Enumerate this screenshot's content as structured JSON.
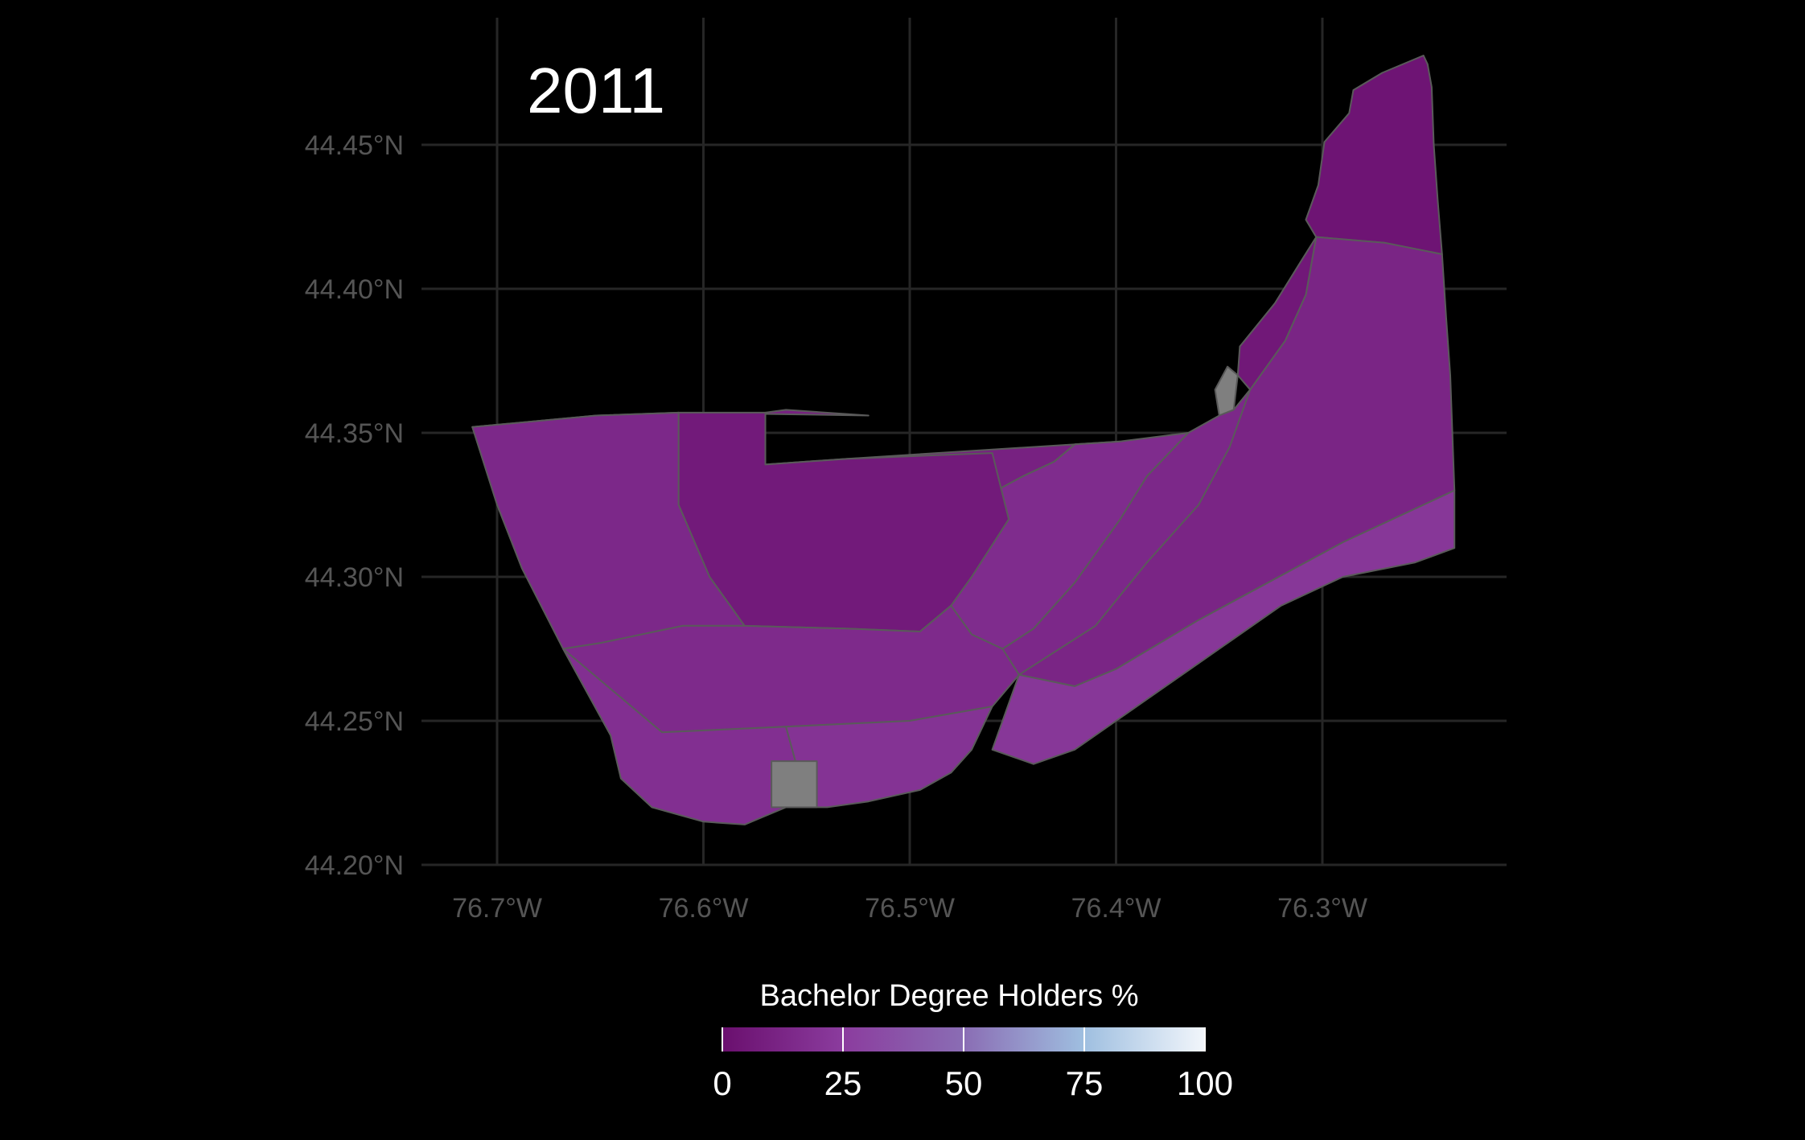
{
  "map": {
    "year": "2011",
    "x_axis": {
      "ticks": [
        {
          "value": -76.7,
          "label": "76.7°W"
        },
        {
          "value": -76.6,
          "label": "76.6°W"
        },
        {
          "value": -76.5,
          "label": "76.5°W"
        },
        {
          "value": -76.4,
          "label": "76.4°W"
        },
        {
          "value": -76.3,
          "label": "76.3°W"
        }
      ]
    },
    "y_axis": {
      "ticks": [
        {
          "value": 44.45,
          "label": "44.45°N"
        },
        {
          "value": 44.4,
          "label": "44.40°N"
        },
        {
          "value": 44.35,
          "label": "44.35°N"
        },
        {
          "value": 44.3,
          "label": "44.30°N"
        },
        {
          "value": 44.25,
          "label": "44.25°N"
        },
        {
          "value": 44.2,
          "label": "44.20°N"
        }
      ]
    },
    "legend": {
      "title": "Bachelor Degree Holders %",
      "range": [
        0,
        100
      ],
      "breaks": [
        {
          "value": 0,
          "label": "0"
        },
        {
          "value": 25,
          "label": "25"
        },
        {
          "value": 50,
          "label": "50"
        },
        {
          "value": 75,
          "label": "75"
        },
        {
          "value": 100,
          "label": "100"
        }
      ],
      "colors": [
        "#6a0f6e",
        "#8b3c9e",
        "#8a6db4",
        "#9fbfe0",
        "#f2f6fb"
      ],
      "na_color": "#7f7f7f"
    },
    "colors": {
      "background": "#000000",
      "grid": "#262626",
      "border": "#5a5a5a"
    },
    "regions": [
      {
        "id": "northeast-tip",
        "value": 3,
        "outline": [
          [
            -76.251,
            44.481
          ],
          [
            -76.249,
            44.478
          ],
          [
            -76.247,
            44.47
          ],
          [
            -76.246,
            44.45
          ],
          [
            -76.244,
            44.43
          ],
          [
            -76.242,
            44.412
          ],
          [
            -76.27,
            44.416
          ],
          [
            -76.303,
            44.418
          ],
          [
            -76.308,
            44.424
          ],
          [
            -76.302,
            44.436
          ],
          [
            -76.299,
            44.451
          ],
          [
            -76.287,
            44.461
          ],
          [
            -76.285,
            44.469
          ],
          [
            -76.271,
            44.475
          ]
        ]
      },
      {
        "id": "wolfe-island-north",
        "value": 12,
        "outline": [
          [
            -76.242,
            44.412
          ],
          [
            -76.24,
            44.39
          ],
          [
            -76.238,
            44.37
          ],
          [
            -76.237,
            44.35
          ],
          [
            -76.236,
            44.33
          ],
          [
            -76.29,
            44.312
          ],
          [
            -76.36,
            44.285
          ],
          [
            -76.4,
            44.268
          ],
          [
            -76.42,
            44.262
          ],
          [
            -76.447,
            44.266
          ],
          [
            -76.455,
            44.275
          ],
          [
            -76.39,
            44.31
          ],
          [
            -76.355,
            44.34
          ],
          [
            -76.335,
            44.365
          ],
          [
            -76.318,
            44.382
          ],
          [
            -76.308,
            44.398
          ],
          [
            -76.303,
            44.418
          ],
          [
            -76.27,
            44.416
          ]
        ]
      },
      {
        "id": "north-strip-dark",
        "value": 5,
        "outline": [
          [
            -76.303,
            44.418
          ],
          [
            -76.308,
            44.398
          ],
          [
            -76.318,
            44.382
          ],
          [
            -76.335,
            44.365
          ],
          [
            -76.341,
            44.37
          ],
          [
            -76.34,
            44.38
          ],
          [
            -76.323,
            44.395
          ],
          [
            -76.31,
            44.41
          ]
        ]
      },
      {
        "id": "north-na-patch",
        "value": null,
        "outline": [
          [
            -76.341,
            44.37
          ],
          [
            -76.346,
            44.373
          ],
          [
            -76.352,
            44.365
          ],
          [
            -76.35,
            44.356
          ],
          [
            -76.343,
            44.358
          ]
        ]
      },
      {
        "id": "ridge-north",
        "value": 14,
        "outline": [
          [
            -76.335,
            44.365
          ],
          [
            -76.343,
            44.358
          ],
          [
            -76.35,
            44.356
          ],
          [
            -76.365,
            44.35
          ],
          [
            -76.385,
            44.335
          ],
          [
            -76.398,
            44.32
          ],
          [
            -76.42,
            44.298
          ],
          [
            -76.44,
            44.282
          ],
          [
            -76.455,
            44.275
          ],
          [
            -76.447,
            44.266
          ],
          [
            -76.41,
            44.283
          ],
          [
            -76.385,
            44.305
          ],
          [
            -76.36,
            44.325
          ],
          [
            -76.345,
            44.345
          ]
        ]
      },
      {
        "id": "ridge-mid",
        "value": 16,
        "outline": [
          [
            -76.398,
            44.347
          ],
          [
            -76.42,
            44.346
          ],
          [
            -76.43,
            44.34
          ],
          [
            -76.445,
            44.335
          ],
          [
            -76.458,
            44.33
          ],
          [
            -76.47,
            44.323
          ],
          [
            -76.478,
            44.305
          ],
          [
            -76.48,
            44.29
          ],
          [
            -76.47,
            44.28
          ],
          [
            -76.455,
            44.275
          ],
          [
            -76.44,
            44.282
          ],
          [
            -76.42,
            44.298
          ],
          [
            -76.398,
            44.32
          ],
          [
            -76.385,
            44.335
          ],
          [
            -76.365,
            44.35
          ]
        ]
      },
      {
        "id": "northwest-large",
        "value": 10,
        "outline": [
          [
            -76.712,
            44.352
          ],
          [
            -76.652,
            44.356
          ],
          [
            -76.612,
            44.357
          ],
          [
            -76.612,
            44.325
          ],
          [
            -76.597,
            44.3
          ],
          [
            -76.58,
            44.283
          ],
          [
            -76.53,
            44.282
          ],
          [
            -76.51,
            44.283
          ],
          [
            -76.495,
            44.281
          ],
          [
            -76.48,
            44.29
          ],
          [
            -76.478,
            44.305
          ],
          [
            -76.47,
            44.323
          ],
          [
            -76.458,
            44.33
          ],
          [
            -76.445,
            44.335
          ],
          [
            -76.43,
            44.34
          ],
          [
            -76.42,
            44.346
          ],
          [
            -76.398,
            44.347
          ],
          [
            -76.53,
            44.341
          ],
          [
            -76.57,
            44.339
          ],
          [
            -76.57,
            44.357
          ],
          [
            -76.56,
            44.358
          ],
          [
            -76.52,
            44.356
          ],
          [
            -76.612,
            44.357
          ]
        ]
      },
      {
        "id": "west-panel",
        "value": 14,
        "outline": [
          [
            -76.712,
            44.352
          ],
          [
            -76.652,
            44.356
          ],
          [
            -76.612,
            44.357
          ],
          [
            -76.612,
            44.325
          ],
          [
            -76.597,
            44.3
          ],
          [
            -76.58,
            44.283
          ],
          [
            -76.61,
            44.283
          ],
          [
            -76.65,
            44.277
          ],
          [
            -76.668,
            44.275
          ],
          [
            -76.688,
            44.303
          ],
          [
            -76.7,
            44.325
          ]
        ]
      },
      {
        "id": "center-north",
        "value": 6,
        "outline": [
          [
            -76.612,
            44.357
          ],
          [
            -76.57,
            44.357
          ],
          [
            -76.57,
            44.339
          ],
          [
            -76.53,
            44.341
          ],
          [
            -76.46,
            44.343
          ],
          [
            -76.452,
            44.32
          ],
          [
            -76.47,
            44.3
          ],
          [
            -76.48,
            44.29
          ],
          [
            -76.495,
            44.281
          ],
          [
            -76.53,
            44.282
          ],
          [
            -76.58,
            44.283
          ],
          [
            -76.597,
            44.3
          ],
          [
            -76.612,
            44.325
          ]
        ]
      },
      {
        "id": "south-band",
        "value": 15,
        "outline": [
          [
            -76.668,
            44.275
          ],
          [
            -76.65,
            44.277
          ],
          [
            -76.61,
            44.283
          ],
          [
            -76.58,
            44.283
          ],
          [
            -76.53,
            44.282
          ],
          [
            -76.495,
            44.281
          ],
          [
            -76.48,
            44.29
          ],
          [
            -76.47,
            44.28
          ],
          [
            -76.455,
            44.275
          ],
          [
            -76.447,
            44.266
          ],
          [
            -76.46,
            44.255
          ],
          [
            -76.5,
            44.25
          ],
          [
            -76.56,
            44.248
          ],
          [
            -76.62,
            44.246
          ],
          [
            -76.645,
            44.245
          ]
        ]
      },
      {
        "id": "southwest-rural",
        "value": 18,
        "outline": [
          [
            -76.668,
            44.275
          ],
          [
            -76.645,
            44.245
          ],
          [
            -76.64,
            44.23
          ],
          [
            -76.625,
            44.22
          ],
          [
            -76.6,
            44.215
          ],
          [
            -76.58,
            44.214
          ],
          [
            -76.56,
            44.22
          ],
          [
            -76.555,
            44.235
          ],
          [
            -76.56,
            44.248
          ],
          [
            -76.62,
            44.246
          ]
        ]
      },
      {
        "id": "kingston-core",
        "value": 20,
        "outline": [
          [
            -76.56,
            44.248
          ],
          [
            -76.555,
            44.235
          ],
          [
            -76.56,
            44.22
          ],
          [
            -76.54,
            44.22
          ],
          [
            -76.52,
            44.222
          ],
          [
            -76.495,
            44.226
          ],
          [
            -76.48,
            44.232
          ],
          [
            -76.47,
            44.24
          ],
          [
            -76.46,
            44.255
          ],
          [
            -76.5,
            44.25
          ]
        ]
      },
      {
        "id": "kingston-na",
        "value": null,
        "outline": [
          [
            -76.567,
            44.236
          ],
          [
            -76.567,
            44.22
          ],
          [
            -76.545,
            44.22
          ],
          [
            -76.545,
            44.236
          ]
        ]
      },
      {
        "id": "east-coast",
        "value": 22,
        "outline": [
          [
            -76.447,
            44.266
          ],
          [
            -76.42,
            44.262
          ],
          [
            -76.4,
            44.268
          ],
          [
            -76.36,
            44.285
          ],
          [
            -76.29,
            44.312
          ],
          [
            -76.236,
            44.33
          ],
          [
            -76.236,
            44.31
          ],
          [
            -76.255,
            44.305
          ],
          [
            -76.29,
            44.3
          ],
          [
            -76.32,
            44.29
          ],
          [
            -76.36,
            44.27
          ],
          [
            -76.39,
            44.255
          ],
          [
            -76.42,
            44.24
          ],
          [
            -76.44,
            44.235
          ],
          [
            -76.46,
            44.24
          ]
        ]
      }
    ]
  }
}
